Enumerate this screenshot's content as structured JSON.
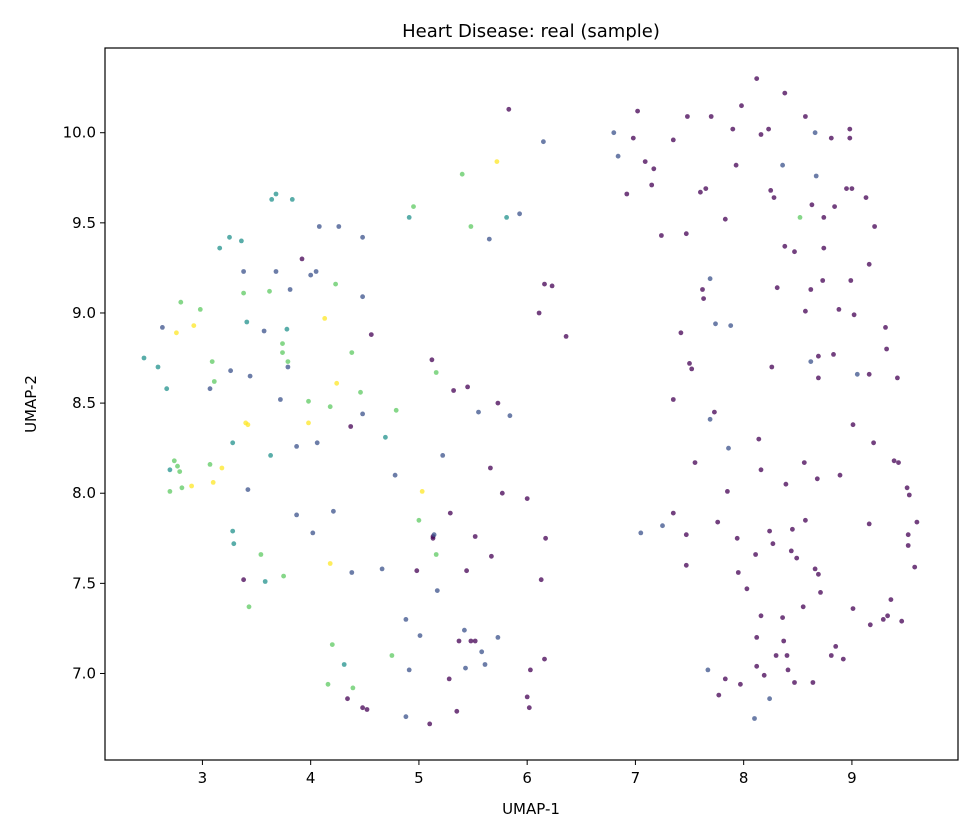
{
  "chart_data": {
    "type": "scatter",
    "title": "Heart Disease: real (sample)",
    "xlabel": "UMAP-1",
    "ylabel": "UMAP-2",
    "xlim": [
      2.1,
      9.98
    ],
    "ylim": [
      6.52,
      10.47
    ],
    "xticks": [
      3,
      4,
      5,
      6,
      7,
      8,
      9
    ],
    "yticks": [
      7.0,
      7.5,
      8.0,
      8.5,
      9.0,
      9.5,
      10.0
    ],
    "xtick_labels": [
      "3",
      "4",
      "5",
      "6",
      "7",
      "8",
      "9"
    ],
    "ytick_labels": [
      "7.0",
      "7.5",
      "8.0",
      "8.5",
      "9.0",
      "9.5",
      "10.0"
    ],
    "grid": false,
    "legend": "none",
    "colormap": "viridis",
    "colors": {
      "0": "#440154",
      "1": "#3b528b",
      "2": "#21918c",
      "3": "#5ec962",
      "4": "#fde725"
    },
    "series": [
      {
        "class": 0,
        "points": [
          [
            8.12,
            10.3
          ],
          [
            8.38,
            10.22
          ],
          [
            7.98,
            10.15
          ],
          [
            7.02,
            10.12
          ],
          [
            5.83,
            10.13
          ],
          [
            7.48,
            10.09
          ],
          [
            7.7,
            10.09
          ],
          [
            8.57,
            10.09
          ],
          [
            7.9,
            10.02
          ],
          [
            8.23,
            10.02
          ],
          [
            8.98,
            10.02
          ],
          [
            8.98,
            9.97
          ],
          [
            8.16,
            9.99
          ],
          [
            8.81,
            9.97
          ],
          [
            6.98,
            9.97
          ],
          [
            7.35,
            9.96
          ],
          [
            7.09,
            9.84
          ],
          [
            7.17,
            9.8
          ],
          [
            7.93,
            9.82
          ],
          [
            7.15,
            9.71
          ],
          [
            7.65,
            9.69
          ],
          [
            7.6,
            9.67
          ],
          [
            8.25,
            9.68
          ],
          [
            8.28,
            9.64
          ],
          [
            6.92,
            9.66
          ],
          [
            8.95,
            9.69
          ],
          [
            9.0,
            9.69
          ],
          [
            9.13,
            9.64
          ],
          [
            8.84,
            9.59
          ],
          [
            8.63,
            9.6
          ],
          [
            7.83,
            9.52
          ],
          [
            8.74,
            9.53
          ],
          [
            9.21,
            9.48
          ],
          [
            7.24,
            9.43
          ],
          [
            7.47,
            9.44
          ],
          [
            8.38,
            9.37
          ],
          [
            8.47,
            9.34
          ],
          [
            8.74,
            9.36
          ],
          [
            3.92,
            9.3
          ],
          [
            6.16,
            9.16
          ],
          [
            6.23,
            9.15
          ],
          [
            9.16,
            9.27
          ],
          [
            7.62,
            9.13
          ],
          [
            7.63,
            9.08
          ],
          [
            8.31,
            9.14
          ],
          [
            8.62,
            9.13
          ],
          [
            8.73,
            9.18
          ],
          [
            8.99,
            9.18
          ],
          [
            6.11,
            9.0
          ],
          [
            8.57,
            9.01
          ],
          [
            8.88,
            9.02
          ],
          [
            9.02,
            8.99
          ],
          [
            9.31,
            8.92
          ],
          [
            6.36,
            8.87
          ],
          [
            7.42,
            8.89
          ],
          [
            4.56,
            8.88
          ],
          [
            9.32,
            8.8
          ],
          [
            7.5,
            8.72
          ],
          [
            7.52,
            8.69
          ],
          [
            8.69,
            8.76
          ],
          [
            8.83,
            8.77
          ],
          [
            5.12,
            8.74
          ],
          [
            8.26,
            8.7
          ],
          [
            9.16,
            8.66
          ],
          [
            8.69,
            8.64
          ],
          [
            9.42,
            8.64
          ],
          [
            5.45,
            8.59
          ],
          [
            5.32,
            8.57
          ],
          [
            7.35,
            8.52
          ],
          [
            7.73,
            8.45
          ],
          [
            5.73,
            8.5
          ],
          [
            4.37,
            8.37
          ],
          [
            9.01,
            8.38
          ],
          [
            8.14,
            8.3
          ],
          [
            9.2,
            8.28
          ],
          [
            7.55,
            8.17
          ],
          [
            9.39,
            8.18
          ],
          [
            9.43,
            8.17
          ],
          [
            8.56,
            8.17
          ],
          [
            8.16,
            8.13
          ],
          [
            5.66,
            8.14
          ],
          [
            8.89,
            8.1
          ],
          [
            8.68,
            8.08
          ],
          [
            8.39,
            8.05
          ],
          [
            9.51,
            8.03
          ],
          [
            5.77,
            8.0
          ],
          [
            6.0,
            7.97
          ],
          [
            7.85,
            8.01
          ],
          [
            9.53,
            7.99
          ],
          [
            5.29,
            7.89
          ],
          [
            7.35,
            7.89
          ],
          [
            7.76,
            7.84
          ],
          [
            8.57,
            7.85
          ],
          [
            8.24,
            7.79
          ],
          [
            8.45,
            7.8
          ],
          [
            9.16,
            7.83
          ],
          [
            9.6,
            7.84
          ],
          [
            7.94,
            7.75
          ],
          [
            6.17,
            7.75
          ],
          [
            5.13,
            7.76
          ],
          [
            5.13,
            7.75
          ],
          [
            7.47,
            7.77
          ],
          [
            5.52,
            7.76
          ],
          [
            9.52,
            7.77
          ],
          [
            8.27,
            7.72
          ],
          [
            9.52,
            7.71
          ],
          [
            8.11,
            7.66
          ],
          [
            5.67,
            7.65
          ],
          [
            8.44,
            7.68
          ],
          [
            8.49,
            7.64
          ],
          [
            7.47,
            7.6
          ],
          [
            8.66,
            7.58
          ],
          [
            8.69,
            7.55
          ],
          [
            7.95,
            7.56
          ],
          [
            8.71,
            7.45
          ],
          [
            9.58,
            7.59
          ],
          [
            3.38,
            7.52
          ],
          [
            4.98,
            7.57
          ],
          [
            5.44,
            7.57
          ],
          [
            6.13,
            7.52
          ],
          [
            8.03,
            7.47
          ],
          [
            8.16,
            7.32
          ],
          [
            8.36,
            7.31
          ],
          [
            8.55,
            7.37
          ],
          [
            9.01,
            7.36
          ],
          [
            9.36,
            7.41
          ],
          [
            9.29,
            7.3
          ],
          [
            9.33,
            7.32
          ],
          [
            9.46,
            7.29
          ],
          [
            9.17,
            7.27
          ],
          [
            8.12,
            7.2
          ],
          [
            8.37,
            7.18
          ],
          [
            8.85,
            7.15
          ],
          [
            8.81,
            7.1
          ],
          [
            8.92,
            7.08
          ],
          [
            8.3,
            7.1
          ],
          [
            8.4,
            7.1
          ],
          [
            5.37,
            7.18
          ],
          [
            5.48,
            7.18
          ],
          [
            5.52,
            7.18
          ],
          [
            6.16,
            7.08
          ],
          [
            8.12,
            7.04
          ],
          [
            8.41,
            7.02
          ],
          [
            6.03,
            7.02
          ],
          [
            5.28,
            6.97
          ],
          [
            7.83,
            6.97
          ],
          [
            8.19,
            6.99
          ],
          [
            8.47,
            6.95
          ],
          [
            8.64,
            6.95
          ],
          [
            7.97,
            6.94
          ],
          [
            7.77,
            6.88
          ],
          [
            4.34,
            6.86
          ],
          [
            4.48,
            6.81
          ],
          [
            4.52,
            6.8
          ],
          [
            6.0,
            6.87
          ],
          [
            6.02,
            6.81
          ],
          [
            5.35,
            6.79
          ],
          [
            5.1,
            6.72
          ]
        ]
      },
      {
        "class": 1,
        "points": [
          [
            6.8,
            10.0
          ],
          [
            8.66,
            10.0
          ],
          [
            6.15,
            9.95
          ],
          [
            6.84,
            9.87
          ],
          [
            8.36,
            9.82
          ],
          [
            8.67,
            9.76
          ],
          [
            4.08,
            9.48
          ],
          [
            4.26,
            9.48
          ],
          [
            4.48,
            9.42
          ],
          [
            5.65,
            9.41
          ],
          [
            5.93,
            9.55
          ],
          [
            3.38,
            9.23
          ],
          [
            3.68,
            9.23
          ],
          [
            4.0,
            9.21
          ],
          [
            4.05,
            9.23
          ],
          [
            3.81,
            9.13
          ],
          [
            4.48,
            9.09
          ],
          [
            7.69,
            9.19
          ],
          [
            2.63,
            8.92
          ],
          [
            3.57,
            8.9
          ],
          [
            7.74,
            8.94
          ],
          [
            7.88,
            8.93
          ],
          [
            3.79,
            8.7
          ],
          [
            3.26,
            8.68
          ],
          [
            8.62,
            8.73
          ],
          [
            9.05,
            8.66
          ],
          [
            3.44,
            8.65
          ],
          [
            3.07,
            8.58
          ],
          [
            3.72,
            8.52
          ],
          [
            4.48,
            8.44
          ],
          [
            5.55,
            8.45
          ],
          [
            5.84,
            8.43
          ],
          [
            7.69,
            8.41
          ],
          [
            3.87,
            8.26
          ],
          [
            4.06,
            8.28
          ],
          [
            5.22,
            8.21
          ],
          [
            7.86,
            8.25
          ],
          [
            4.78,
            8.1
          ],
          [
            3.42,
            8.02
          ],
          [
            4.21,
            7.9
          ],
          [
            3.87,
            7.88
          ],
          [
            4.02,
            7.78
          ],
          [
            7.25,
            7.82
          ],
          [
            7.05,
            7.78
          ],
          [
            5.14,
            7.77
          ],
          [
            4.66,
            7.58
          ],
          [
            4.38,
            7.56
          ],
          [
            5.17,
            7.46
          ],
          [
            4.88,
            7.3
          ],
          [
            5.42,
            7.24
          ],
          [
            5.73,
            7.2
          ],
          [
            5.58,
            7.12
          ],
          [
            5.01,
            7.21
          ],
          [
            5.61,
            7.05
          ],
          [
            5.43,
            7.03
          ],
          [
            4.91,
            7.02
          ],
          [
            7.67,
            7.02
          ],
          [
            4.88,
            6.76
          ],
          [
            8.24,
            6.86
          ],
          [
            8.1,
            6.75
          ]
        ]
      },
      {
        "class": 2,
        "points": [
          [
            3.68,
            9.66
          ],
          [
            3.64,
            9.63
          ],
          [
            3.83,
            9.63
          ],
          [
            4.91,
            9.53
          ],
          [
            5.81,
            9.53
          ],
          [
            3.25,
            9.42
          ],
          [
            3.36,
            9.4
          ],
          [
            3.16,
            9.36
          ],
          [
            3.41,
            8.95
          ],
          [
            3.78,
            8.91
          ],
          [
            2.46,
            8.75
          ],
          [
            2.59,
            8.7
          ],
          [
            2.67,
            8.58
          ],
          [
            3.28,
            8.28
          ],
          [
            3.63,
            8.21
          ],
          [
            4.69,
            8.31
          ],
          [
            2.7,
            8.13
          ],
          [
            3.28,
            7.79
          ],
          [
            3.29,
            7.72
          ],
          [
            3.58,
            7.51
          ],
          [
            4.31,
            7.05
          ]
        ]
      },
      {
        "class": 3,
        "points": [
          [
            4.95,
            9.59
          ],
          [
            5.4,
            9.77
          ],
          [
            5.48,
            9.48
          ],
          [
            3.38,
            9.11
          ],
          [
            3.62,
            9.12
          ],
          [
            4.23,
            9.16
          ],
          [
            2.98,
            9.02
          ],
          [
            2.8,
            9.06
          ],
          [
            3.74,
            8.83
          ],
          [
            3.74,
            8.78
          ],
          [
            3.79,
            8.73
          ],
          [
            4.38,
            8.78
          ],
          [
            3.09,
            8.73
          ],
          [
            5.16,
            8.67
          ],
          [
            3.11,
            8.62
          ],
          [
            4.46,
            8.56
          ],
          [
            3.98,
            8.51
          ],
          [
            4.18,
            8.48
          ],
          [
            4.79,
            8.46
          ],
          [
            2.74,
            8.18
          ],
          [
            2.77,
            8.15
          ],
          [
            3.07,
            8.16
          ],
          [
            2.79,
            8.12
          ],
          [
            2.7,
            8.01
          ],
          [
            2.81,
            8.03
          ],
          [
            5.0,
            7.85
          ],
          [
            5.16,
            7.66
          ],
          [
            3.54,
            7.66
          ],
          [
            3.75,
            7.54
          ],
          [
            3.43,
            7.37
          ],
          [
            4.2,
            7.16
          ],
          [
            4.16,
            6.94
          ],
          [
            4.39,
            6.92
          ],
          [
            4.75,
            7.1
          ],
          [
            8.52,
            9.53
          ]
        ]
      },
      {
        "class": 4,
        "points": [
          [
            5.72,
            9.84
          ],
          [
            4.13,
            8.97
          ],
          [
            2.92,
            8.93
          ],
          [
            2.76,
            8.89
          ],
          [
            4.24,
            8.61
          ],
          [
            3.4,
            8.39
          ],
          [
            3.42,
            8.38
          ],
          [
            3.98,
            8.39
          ],
          [
            3.18,
            8.14
          ],
          [
            3.1,
            8.06
          ],
          [
            2.9,
            8.04
          ],
          [
            5.03,
            8.01
          ],
          [
            4.18,
            7.61
          ]
        ]
      }
    ]
  }
}
